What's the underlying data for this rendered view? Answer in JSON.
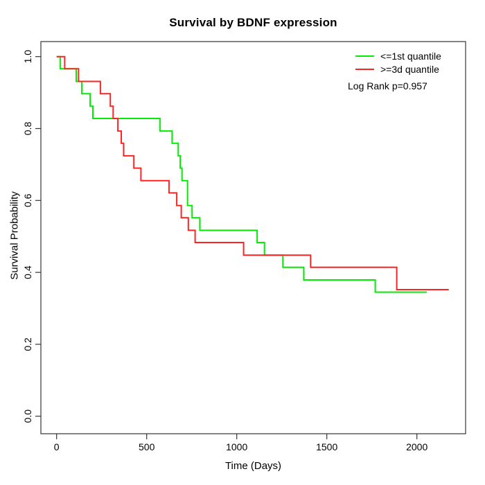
{
  "chart_data": {
    "type": "line",
    "subtype": "kaplan-meier-step",
    "title": "Survival by BDNF expression",
    "xlabel": "Time (Days)",
    "ylabel": "Survival Probability",
    "xlim": [
      0,
      2270
    ],
    "ylim": [
      0,
      1
    ],
    "xticks": [
      0,
      500,
      1000,
      1500,
      2000
    ],
    "ytick_labels": [
      "0.0",
      "0.2",
      "0.4",
      "0.6",
      "0.8",
      "1.0"
    ],
    "grid": "off",
    "legend_position": "top-right-inside",
    "annotation": "Log Rank p=0.957",
    "axis_color": "#333333",
    "series": [
      {
        "name": "<=1st quantile",
        "color": "#00ee00",
        "step_points": [
          [
            0,
            1.0
          ],
          [
            20,
            0.966
          ],
          [
            109,
            0.931
          ],
          [
            140,
            0.897
          ],
          [
            186,
            0.862
          ],
          [
            201,
            0.828
          ],
          [
            574,
            0.793
          ],
          [
            641,
            0.759
          ],
          [
            675,
            0.724
          ],
          [
            686,
            0.69
          ],
          [
            696,
            0.655
          ],
          [
            727,
            0.586
          ],
          [
            752,
            0.552
          ],
          [
            795,
            0.517
          ],
          [
            1113,
            0.483
          ],
          [
            1154,
            0.448
          ],
          [
            1256,
            0.414
          ],
          [
            1372,
            0.379
          ],
          [
            1769,
            0.345
          ],
          [
            2055,
            0.345
          ]
        ]
      },
      {
        "name": ">=3d quantile",
        "color": "#ff2222",
        "step_points": [
          [
            0,
            1.0
          ],
          [
            45,
            0.966
          ],
          [
            122,
            0.931
          ],
          [
            243,
            0.897
          ],
          [
            298,
            0.862
          ],
          [
            314,
            0.828
          ],
          [
            340,
            0.793
          ],
          [
            359,
            0.759
          ],
          [
            372,
            0.724
          ],
          [
            429,
            0.69
          ],
          [
            468,
            0.655
          ],
          [
            624,
            0.621
          ],
          [
            667,
            0.586
          ],
          [
            692,
            0.552
          ],
          [
            731,
            0.517
          ],
          [
            769,
            0.483
          ],
          [
            1038,
            0.448
          ],
          [
            1410,
            0.414
          ],
          [
            1888,
            0.352
          ],
          [
            2177,
            0.352
          ]
        ]
      }
    ]
  }
}
